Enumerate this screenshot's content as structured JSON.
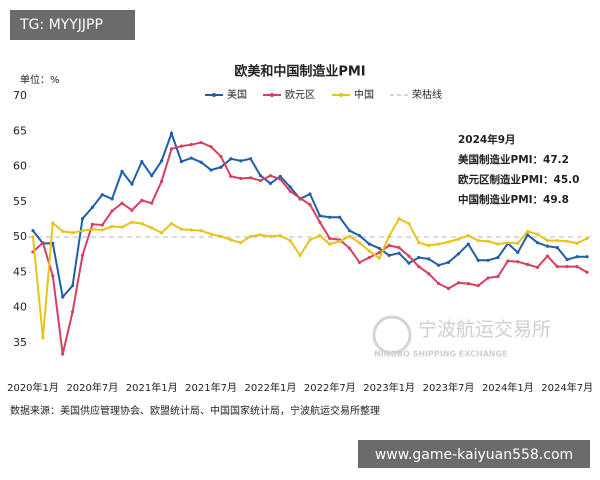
{
  "watermark_top": "TG: MYYJJPP",
  "watermark_bottom": "www.game-kaiyuan558.com",
  "chart_data": {
    "type": "line",
    "title": "欧美和中国制造业PMI",
    "unit_label": "单位：%",
    "source": "数据来源：美国供应管理协会、欧盟统计局、中国国家统计局，宁波航运交易所整理",
    "logo": {
      "name": "宁波航运交易所",
      "subtitle": "NINGBO SHIPPING EXCHANGE"
    },
    "annotation": [
      "2024年9月",
      "美国制造业PMI：47.2",
      "欧元区制造业PMI：45.0",
      "中国制造业PMI：49.8"
    ],
    "categories": [
      "2020年1月",
      null,
      null,
      null,
      null,
      null,
      "2020年7月",
      null,
      null,
      null,
      null,
      null,
      "2021年1月",
      null,
      null,
      null,
      null,
      null,
      "2021年7月",
      null,
      null,
      null,
      null,
      null,
      "2022年1月",
      null,
      null,
      null,
      null,
      null,
      "2022年7月",
      null,
      null,
      null,
      null,
      null,
      "2023年1月",
      null,
      null,
      null,
      null,
      null,
      "2023年7月",
      null,
      null,
      null,
      null,
      null,
      "2024年1月",
      null,
      null,
      null,
      null,
      null,
      "2024年7月",
      null,
      null
    ],
    "ylim": [
      31,
      70
    ],
    "yticks": [
      35,
      40,
      45,
      50,
      55,
      60,
      65,
      70
    ],
    "grid": false,
    "reference_line": {
      "name": "荣枯线",
      "value": 50,
      "color": "#c8c8c8"
    },
    "series": [
      {
        "name": "美国",
        "color": "#1f5fa8",
        "values": [
          50.9,
          49.1,
          49.1,
          41.5,
          43.1,
          52.6,
          54.2,
          56,
          55.4,
          59.3,
          57.5,
          60.7,
          58.7,
          60.8,
          64.7,
          60.7,
          61.2,
          60.6,
          59.5,
          59.9,
          61.1,
          60.8,
          61.1,
          58.7,
          57.6,
          58.6,
          57.1,
          55.4,
          56.1,
          53,
          52.8,
          52.8,
          50.9,
          50.2,
          49,
          48.4,
          47.4,
          47.7,
          46.3,
          47.1,
          46.9,
          46,
          46.4,
          47.6,
          49,
          46.7,
          46.7,
          47.1,
          49.1,
          47.8,
          50.3,
          49.2,
          48.7,
          48.5,
          46.8,
          47.2,
          47.2
        ]
      },
      {
        "name": "欧元区",
        "color": "#d6405e",
        "values": [
          47.9,
          49.2,
          44.5,
          33.4,
          39.4,
          47.4,
          51.8,
          51.7,
          53.7,
          54.8,
          53.8,
          55.2,
          54.8,
          57.9,
          62.5,
          62.9,
          63.1,
          63.4,
          62.8,
          61.4,
          58.6,
          58.3,
          58.4,
          58,
          58.7,
          58.2,
          56.5,
          55.5,
          54.6,
          52.1,
          49.8,
          49.6,
          48.4,
          46.4,
          47.1,
          47.8,
          48.8,
          48.5,
          47.3,
          45.8,
          44.8,
          43.4,
          42.7,
          43.5,
          43.4,
          43.1,
          44.2,
          44.4,
          46.6,
          46.5,
          46.1,
          45.7,
          47.3,
          45.8,
          45.8,
          45.8,
          45.0
        ]
      },
      {
        "name": "中国",
        "color": "#e9c21a",
        "values": [
          50,
          35.7,
          52,
          50.8,
          50.6,
          50.9,
          51.1,
          51,
          51.5,
          51.4,
          52.1,
          51.9,
          51.3,
          50.6,
          51.9,
          51.1,
          51,
          50.9,
          50.4,
          50.1,
          49.6,
          49.2,
          50.1,
          50.3,
          50.1,
          50.2,
          49.5,
          47.4,
          49.6,
          50.2,
          49,
          49.4,
          50.1,
          49.2,
          48,
          47,
          50.1,
          52.6,
          51.9,
          49.2,
          48.8,
          49,
          49.3,
          49.7,
          50.2,
          49.5,
          49.4,
          49,
          49.2,
          49.1,
          50.8,
          50.4,
          49.5,
          49.5,
          49.4,
          49.1,
          49.8
        ]
      }
    ]
  }
}
